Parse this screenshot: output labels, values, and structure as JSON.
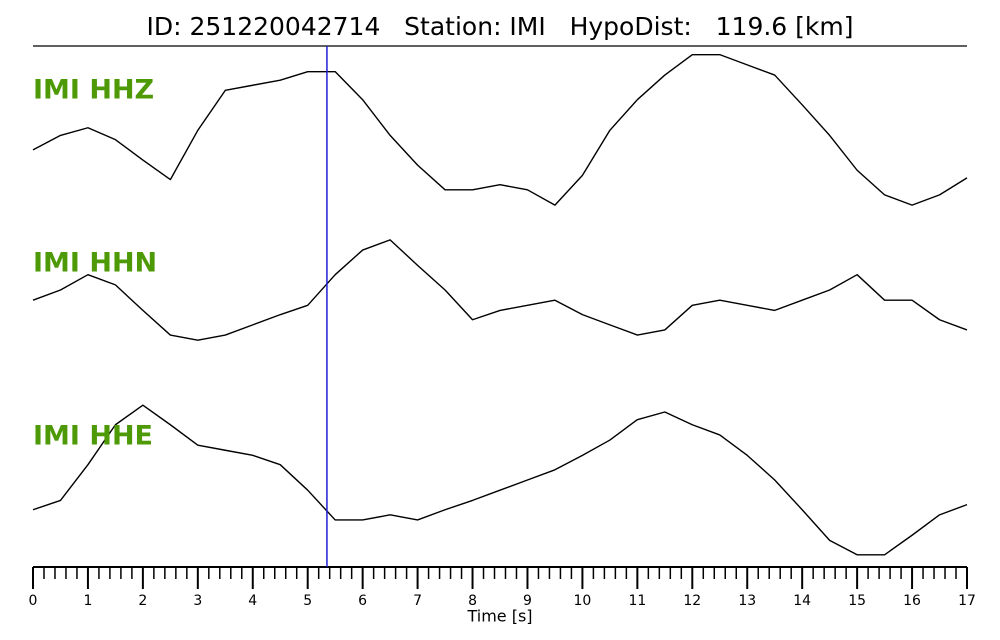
{
  "chart_data": {
    "type": "line",
    "title": "ID: 251220042714   Station: IMI   HypoDist:   119.6 [km]",
    "x_label": "Time [s]",
    "x": [
      0,
      0.5,
      1,
      1.5,
      2,
      2.5,
      3,
      3.5,
      4,
      4.5,
      5,
      5.5,
      6,
      6.5,
      7,
      7.5,
      8,
      8.5,
      9,
      9.5,
      10,
      10.5,
      11,
      11.5,
      12,
      12.5,
      13,
      13.5,
      14,
      14.5,
      15,
      15.5,
      16,
      16.5,
      17
    ],
    "series": [
      {
        "name": "IMI HHZ",
        "color": "#000000",
        "values": [
          -0.21,
          -0.04,
          0.05,
          -0.09,
          -0.33,
          -0.56,
          0.02,
          0.49,
          0.55,
          0.61,
          0.71,
          0.71,
          0.38,
          -0.04,
          -0.39,
          -0.68,
          -0.68,
          -0.62,
          -0.68,
          -0.86,
          -0.51,
          0.02,
          0.38,
          0.67,
          0.91,
          0.91,
          0.79,
          0.67,
          0.32,
          -0.04,
          -0.45,
          -0.74,
          -0.86,
          -0.74,
          -0.54
        ]
      },
      {
        "name": "IMI HHN",
        "color": "#000000",
        "values": [
          -0.12,
          0,
          0.18,
          0.06,
          -0.24,
          -0.53,
          -0.59,
          -0.53,
          -0.41,
          -0.29,
          -0.18,
          0.18,
          0.47,
          0.59,
          0.29,
          0,
          -0.35,
          -0.24,
          -0.18,
          -0.12,
          -0.29,
          -0.41,
          -0.53,
          -0.47,
          -0.18,
          -0.12,
          -0.18,
          -0.24,
          -0.12,
          0,
          0.18,
          -0.12,
          -0.12,
          -0.35,
          -0.47
        ]
      },
      {
        "name": "IMI HHE",
        "color": "#000000",
        "values": [
          -0.35,
          -0.24,
          0.18,
          0.65,
          0.88,
          0.65,
          0.41,
          0.35,
          0.29,
          0.18,
          -0.12,
          -0.47,
          -0.47,
          -0.41,
          -0.47,
          -0.35,
          -0.24,
          -0.12,
          0,
          0.12,
          0.29,
          0.47,
          0.71,
          0.8,
          0.65,
          0.53,
          0.29,
          0,
          -0.35,
          -0.71,
          -0.88,
          -0.88,
          -0.65,
          -0.41,
          -0.29
        ]
      }
    ],
    "label_color": "#4d9a06",
    "ylim": [
      -1,
      1
    ],
    "xlim": [
      0,
      17
    ],
    "xticks": [
      0,
      1,
      2,
      3,
      4,
      5,
      6,
      7,
      8,
      9,
      10,
      11,
      12,
      13,
      14,
      15,
      16,
      17
    ],
    "xminorticks": [
      0.2,
      0.4,
      0.6,
      0.8,
      1.2,
      1.4,
      1.6,
      1.8,
      2.2,
      2.4,
      2.6,
      2.8,
      3.2,
      3.4,
      3.6,
      3.8,
      4.2,
      4.4,
      4.6,
      4.8,
      5.2,
      5.4,
      5.6,
      5.8,
      6.2,
      6.4,
      6.6,
      6.8,
      7.2,
      7.4,
      7.6,
      7.8,
      8.2,
      8.4,
      8.6,
      8.8,
      9.2,
      9.4,
      9.6,
      9.8,
      10.2,
      10.4,
      10.6,
      10.8,
      11.2,
      11.4,
      11.6,
      11.8,
      12.2,
      12.4,
      12.6,
      12.8,
      13.2,
      13.4,
      13.6,
      13.8,
      14.2,
      14.4,
      14.6,
      14.8,
      15.2,
      15.4,
      15.6,
      15.8,
      16.2,
      16.4,
      16.6,
      16.8
    ],
    "pick_time": 5.35,
    "pick_color": "#1f1fd6"
  }
}
